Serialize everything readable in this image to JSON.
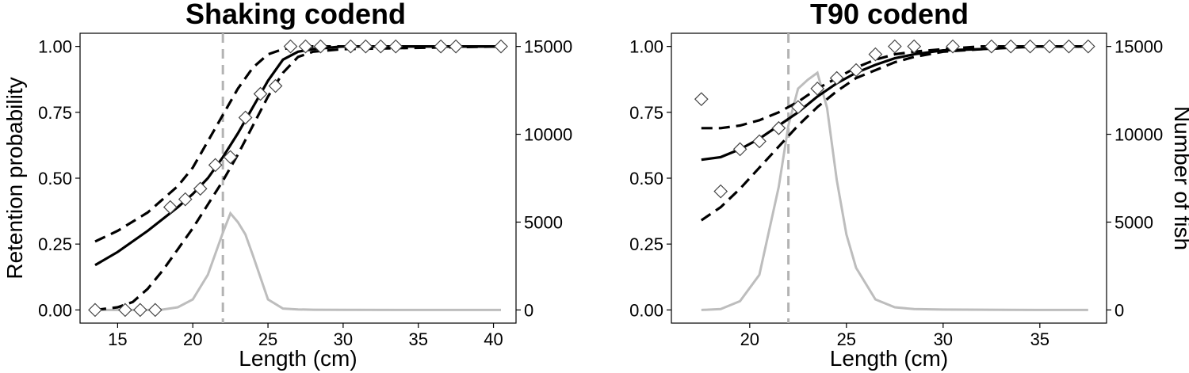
{
  "chart_data": [
    {
      "type": "line",
      "title": "Shaking codend",
      "xlabel": "Length (cm)",
      "ylabel": "Retention probability",
      "y2label": "",
      "xlim": [
        12.5,
        41.5
      ],
      "ylim": [
        -0.05,
        1.05
      ],
      "y2lim": [
        -750,
        15750
      ],
      "xticks": [
        15,
        20,
        25,
        30,
        35,
        40
      ],
      "yticks": [
        0.0,
        0.25,
        0.5,
        0.75,
        1.0
      ],
      "ytick_labels": [
        "0.00",
        "0.25",
        "0.50",
        "0.75",
        "1.00"
      ],
      "y2ticks": [
        0,
        5000,
        10000,
        15000
      ],
      "y2tick_labels": [
        "0",
        "5000",
        "10000",
        "15000"
      ],
      "mls_line_x": 22,
      "grid": false,
      "series": [
        {
          "role": "fit",
          "x": [
            13.5,
            15,
            17,
            19,
            20,
            21,
            22,
            23,
            24,
            25,
            26,
            27,
            28,
            30,
            35,
            40.5
          ],
          "y": [
            0.17,
            0.22,
            0.3,
            0.39,
            0.44,
            0.5,
            0.58,
            0.67,
            0.77,
            0.87,
            0.95,
            0.98,
            0.99,
            1.0,
            1.0,
            1.0
          ]
        },
        {
          "role": "ci_upper",
          "x": [
            13.5,
            15,
            17,
            19,
            20,
            21,
            22,
            23,
            24,
            25,
            26,
            27,
            30,
            40.5
          ],
          "y": [
            0.26,
            0.3,
            0.37,
            0.47,
            0.54,
            0.64,
            0.74,
            0.84,
            0.92,
            0.97,
            0.99,
            1.0,
            1.0,
            1.0
          ]
        },
        {
          "role": "ci_lower",
          "x": [
            13.5,
            15,
            16,
            17,
            18,
            19,
            20,
            21,
            22,
            23,
            24,
            25,
            26,
            27,
            28,
            30,
            40.5
          ],
          "y": [
            0.0,
            0.01,
            0.03,
            0.08,
            0.15,
            0.23,
            0.31,
            0.4,
            0.49,
            0.59,
            0.7,
            0.81,
            0.9,
            0.96,
            0.98,
            0.99,
            1.0
          ]
        },
        {
          "role": "experimental",
          "x": [
            13.5,
            15.5,
            16.5,
            17.5,
            18.5,
            19.5,
            20.5,
            21.5,
            22.5,
            23.5,
            24.5,
            25.5,
            26.5,
            27.5,
            28.5,
            30.5,
            31.5,
            32.5,
            33.5,
            36.5,
            37.5,
            40.5
          ],
          "y": [
            0.0,
            0.0,
            0.0,
            0.0,
            0.39,
            0.42,
            0.46,
            0.55,
            0.58,
            0.73,
            0.82,
            0.85,
            1.0,
            1.0,
            1.0,
            1.0,
            1.0,
            1.0,
            1.0,
            1.0,
            1.0,
            1.0
          ]
        },
        {
          "role": "population",
          "x": [
            13.5,
            15,
            16,
            17,
            18,
            19,
            20,
            21,
            22,
            22.5,
            23,
            23.5,
            24,
            25,
            26,
            27,
            28,
            30,
            35,
            40.5
          ],
          "y": [
            0,
            0,
            0,
            0,
            20,
            150,
            600,
            2000,
            4400,
            5500,
            5000,
            4300,
            3100,
            600,
            80,
            30,
            10,
            5,
            0,
            0
          ]
        }
      ]
    },
    {
      "type": "line",
      "title": "T90 codend",
      "xlabel": "Length (cm)",
      "ylabel": "",
      "y2label": "Number of fish",
      "xlim": [
        15.95,
        38.45
      ],
      "ylim": [
        -0.05,
        1.05
      ],
      "y2lim": [
        -750,
        15750
      ],
      "xticks": [
        20,
        25,
        30,
        35
      ],
      "yticks": [
        0.0,
        0.25,
        0.5,
        0.75,
        1.0
      ],
      "ytick_labels": [
        "0.00",
        "0.25",
        "0.50",
        "0.75",
        "1.00"
      ],
      "y2ticks": [
        0,
        5000,
        10000,
        15000
      ],
      "y2tick_labels": [
        "0",
        "5000",
        "10000",
        "15000"
      ],
      "mls_line_x": 22,
      "grid": false,
      "series": [
        {
          "role": "fit",
          "x": [
            17.5,
            18.5,
            19.5,
            20.5,
            21.5,
            22.5,
            23.5,
            24.5,
            25.5,
            26.5,
            27.5,
            28.5,
            30,
            32,
            35,
            37.5
          ],
          "y": [
            0.57,
            0.58,
            0.61,
            0.65,
            0.7,
            0.75,
            0.81,
            0.86,
            0.9,
            0.93,
            0.955,
            0.97,
            0.985,
            0.99,
            1.0,
            1.0
          ]
        },
        {
          "role": "ci_upper",
          "x": [
            17.5,
            18.5,
            19.5,
            20.5,
            21.5,
            22.5,
            23.5,
            24.5,
            25.5,
            26.5,
            27.5,
            28.5,
            30,
            32,
            35,
            37.5
          ],
          "y": [
            0.69,
            0.69,
            0.7,
            0.72,
            0.75,
            0.79,
            0.84,
            0.88,
            0.92,
            0.95,
            0.97,
            0.98,
            0.99,
            1.0,
            1.0,
            1.0
          ]
        },
        {
          "role": "ci_lower",
          "x": [
            17.5,
            18.5,
            19.5,
            20.5,
            21.5,
            22.5,
            23.5,
            24.5,
            25.5,
            26.5,
            27.5,
            28.5,
            30,
            32,
            35,
            37.5
          ],
          "y": [
            0.34,
            0.39,
            0.46,
            0.54,
            0.62,
            0.7,
            0.77,
            0.83,
            0.88,
            0.91,
            0.94,
            0.96,
            0.98,
            0.99,
            1.0,
            1.0
          ]
        },
        {
          "role": "experimental",
          "x": [
            17.5,
            18.5,
            19.5,
            20.5,
            21.5,
            22.5,
            23.5,
            24.5,
            25.5,
            26.5,
            27.5,
            28.5,
            30.5,
            32.5,
            33.5,
            34.5,
            35.5,
            36.5,
            37.5
          ],
          "y": [
            0.8,
            0.45,
            0.61,
            0.64,
            0.69,
            0.77,
            0.84,
            0.88,
            0.91,
            0.97,
            1.0,
            1.0,
            1.0,
            1.0,
            1.0,
            1.0,
            1.0,
            1.0,
            1.0
          ]
        },
        {
          "role": "population",
          "x": [
            17.5,
            18.5,
            19.5,
            20.5,
            21,
            21.5,
            22,
            22.5,
            23,
            23.5,
            24,
            24.5,
            25,
            25.5,
            26.5,
            27.5,
            28.5,
            30,
            35,
            37.5
          ],
          "y": [
            0,
            50,
            500,
            2000,
            4500,
            7000,
            10500,
            12600,
            13100,
            13500,
            11500,
            7400,
            4300,
            2400,
            600,
            150,
            50,
            20,
            0,
            0
          ]
        }
      ]
    }
  ]
}
